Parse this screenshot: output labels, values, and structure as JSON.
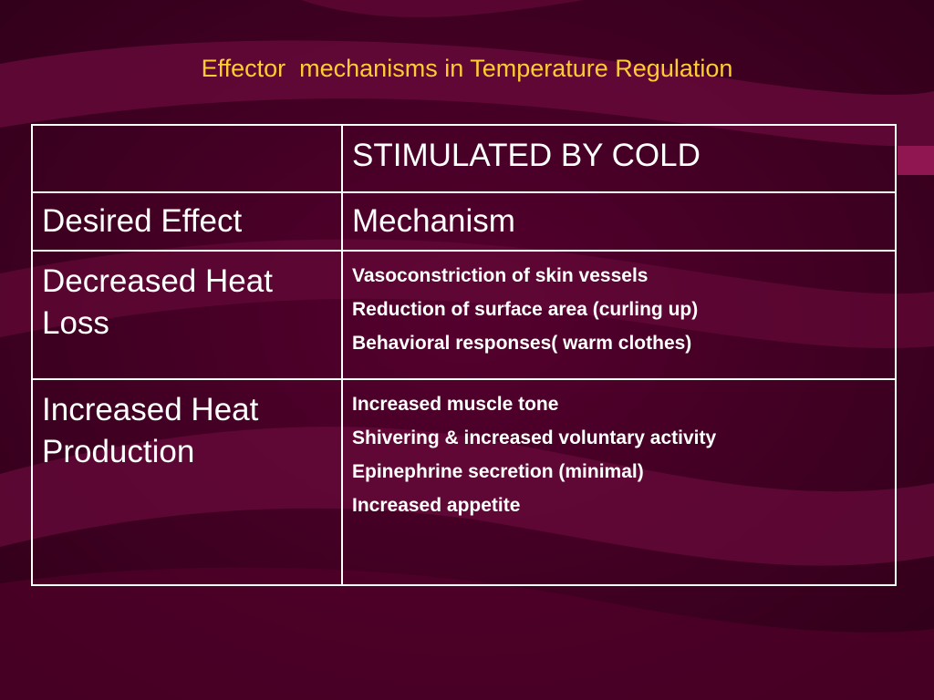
{
  "slide": {
    "title": "Effector  mechanisms in Temperature Regulation"
  },
  "table": {
    "header_left": "",
    "header_right": "STIMULATED BY COLD",
    "col_desired": "Desired Effect",
    "col_mechanism": "Mechanism",
    "rows": [
      {
        "effect": "Decreased Heat Loss",
        "mechanisms": [
          "Vasoconstriction of skin vessels",
          "Reduction of surface area (curling up)",
          "Behavioral responses( warm clothes)"
        ]
      },
      {
        "effect": "Increased Heat Production",
        "mechanisms": [
          "Increased muscle tone",
          "Shivering & increased voluntary activity",
          "Epinephrine secretion (minimal)",
          "Increased appetite"
        ]
      }
    ]
  },
  "colors": {
    "background": "#3d0022",
    "swirl": "#6a0a3c",
    "title": "#ffcc33",
    "text": "#ffffff",
    "border": "#ffffff"
  }
}
